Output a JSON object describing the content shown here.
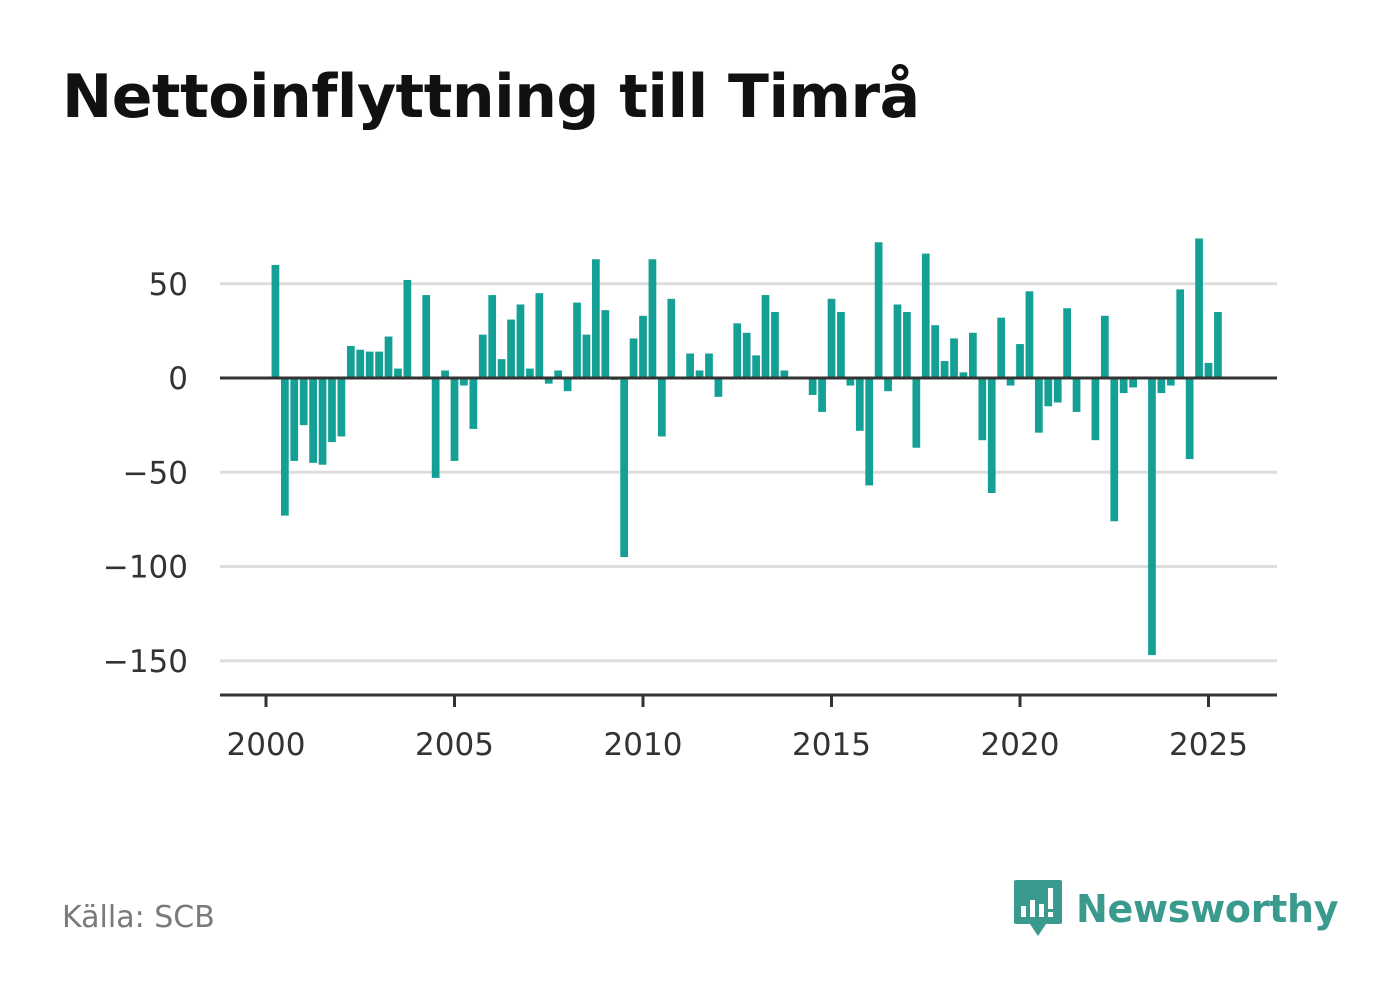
{
  "title": "Nettoinflyttning till Timrå",
  "source": "Källa: SCB",
  "brand": {
    "name": "Newsworthy",
    "icon": "newsworthy-logo-icon"
  },
  "colors": {
    "bar": "#14a095",
    "grid": "#dddddd",
    "axis": "#333333",
    "brand": "#3a9a8e"
  },
  "chart_data": {
    "type": "bar",
    "title": "Nettoinflyttning till Timrå",
    "xlabel": "",
    "ylabel": "",
    "ylim": [
      -170,
      78
    ],
    "xlim": [
      1999.75,
      2026.75
    ],
    "yticks": [
      50,
      0,
      -50,
      -100,
      -150
    ],
    "ytick_labels": [
      "50",
      "0",
      "−50",
      "−100",
      "−150"
    ],
    "xticks": [
      2000,
      2005,
      2010,
      2015,
      2020,
      2025
    ],
    "xtick_labels": [
      "2000",
      "2005",
      "2010",
      "2015",
      "2020",
      "2025"
    ],
    "grid": true,
    "legend": "none",
    "series": [
      {
        "start": 2000.0,
        "step": 0.25,
        "values": [
          0,
          60,
          -73,
          -44,
          -25,
          -45,
          -46,
          -34,
          -31,
          17,
          15,
          14,
          14,
          22,
          5,
          52,
          0,
          44,
          -53,
          4,
          -44,
          -4,
          -27,
          23,
          44,
          10,
          31,
          39,
          5,
          45,
          -3,
          4,
          -7,
          40,
          23,
          63,
          36,
          -1,
          -95,
          21,
          33,
          63,
          -31,
          42,
          0,
          13,
          4,
          13,
          -10,
          0,
          29,
          24,
          12,
          44,
          35,
          4,
          0,
          0,
          -9,
          -18,
          42,
          35,
          -4,
          -28,
          -57,
          72,
          -7,
          39,
          35,
          -37,
          66,
          28,
          9,
          21,
          3,
          24,
          -33,
          -61,
          32,
          -4,
          18,
          46,
          -29,
          -15,
          -13,
          37,
          -18,
          0,
          -33,
          33,
          -76,
          -8,
          -5,
          0,
          -147,
          -8,
          -4,
          47,
          -43,
          74,
          8,
          35
        ]
      }
    ]
  }
}
